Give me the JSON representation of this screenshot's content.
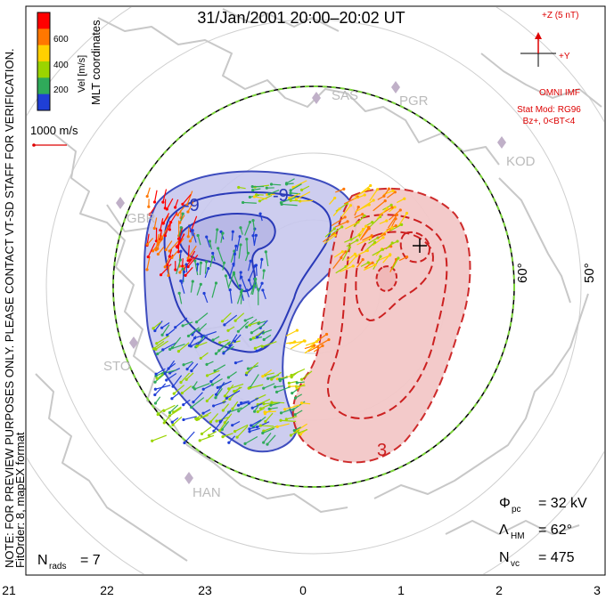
{
  "title": "31/Jan/2001 20:00–20:02 UT",
  "colorbar": {
    "label": "Vel [m/s]",
    "ticks": [
      "600",
      "400",
      "200"
    ],
    "colors": [
      "#ff0000",
      "#ff7700",
      "#ffd000",
      "#9bd400",
      "#2faa5a",
      "#1f3fd6"
    ]
  },
  "coord_label": "MLT coordinates",
  "scale_label": "1000 m/s",
  "preview_note": "NOTE: FOR PREVIEW PURPOSES ONLY. PLEASE CONTACT VT-SD STAFF FOR VERIFICATION.",
  "fit_note": "FitOrder: 8, mapEX format",
  "imf": {
    "z_label": "+Z (5 nT)",
    "y_label": "+Y",
    "source": "OMNI IMF",
    "model": "Stat Mod: RG96",
    "condition": "Bz+, 0<BT<4"
  },
  "stations": [
    "SAS",
    "PGR",
    "KOD",
    "GBR",
    "STO",
    "HAN"
  ],
  "lat_labels": [
    "60°",
    "50°"
  ],
  "contour_labels": [
    "-9",
    "-9",
    "3"
  ],
  "stats": {
    "phi_symbol": "Φ",
    "phi_sub": "pc",
    "phi_value": "= 32 kV",
    "lambda_symbol": "Λ",
    "lambda_sub": "HM",
    "lambda_value": "= 62°",
    "nvc_symbol": "N",
    "nvc_sub": "vc",
    "nvc_value": "= 475",
    "nrads_symbol": "N",
    "nrads_sub": "rads",
    "nrads_value": "= 7"
  },
  "mlt_ticks": [
    "21",
    "22",
    "23",
    "0",
    "1",
    "2",
    "3"
  ],
  "colors": {
    "negative_cell": "#2a3ab8",
    "positive_cell": "#cc2020",
    "boundary_green": "#7bd33a",
    "imf": "#dd0000",
    "land": "#c8c8c8"
  }
}
